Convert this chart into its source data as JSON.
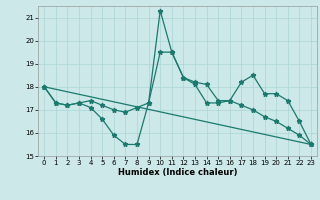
{
  "xlabel": "Humidex (Indice chaleur)",
  "bg_color": "#cce8e8",
  "line_color": "#1a7a6e",
  "xlim": [
    -0.5,
    23.5
  ],
  "ylim": [
    15,
    21.5
  ],
  "yticks": [
    15,
    16,
    17,
    18,
    19,
    20,
    21
  ],
  "xticks": [
    0,
    1,
    2,
    3,
    4,
    5,
    6,
    7,
    8,
    9,
    10,
    11,
    12,
    13,
    14,
    15,
    16,
    17,
    18,
    19,
    20,
    21,
    22,
    23
  ],
  "series1_x": [
    0,
    1,
    2,
    3,
    4,
    5,
    6,
    7,
    8,
    9,
    10,
    11,
    12,
    13,
    14,
    15,
    16,
    17,
    18,
    19,
    20,
    21,
    22,
    23
  ],
  "series1_y": [
    18.0,
    17.3,
    17.2,
    17.3,
    17.1,
    16.6,
    15.9,
    15.5,
    15.5,
    17.3,
    21.3,
    19.5,
    18.4,
    18.1,
    17.3,
    17.3,
    17.4,
    17.2,
    17.0,
    16.7,
    16.5,
    16.2,
    15.9,
    15.5
  ],
  "series2_x": [
    0,
    1,
    2,
    3,
    4,
    5,
    6,
    7,
    8,
    9,
    10,
    11,
    12,
    13,
    14,
    15,
    16,
    17,
    18,
    19,
    20,
    21,
    22,
    23
  ],
  "series2_y": [
    18.0,
    17.3,
    17.2,
    17.3,
    17.4,
    17.2,
    17.0,
    16.9,
    17.1,
    17.3,
    19.5,
    19.5,
    18.4,
    18.2,
    18.1,
    17.4,
    17.4,
    18.2,
    18.5,
    17.7,
    17.7,
    17.4,
    16.5,
    15.5
  ],
  "series3_x": [
    0,
    23
  ],
  "series3_y": [
    18.0,
    15.5
  ],
  "grid_color": "#aad4d4",
  "marker": "*",
  "markersize": 3.5,
  "tick_fontsize": 5.0,
  "xlabel_fontsize": 6.0
}
